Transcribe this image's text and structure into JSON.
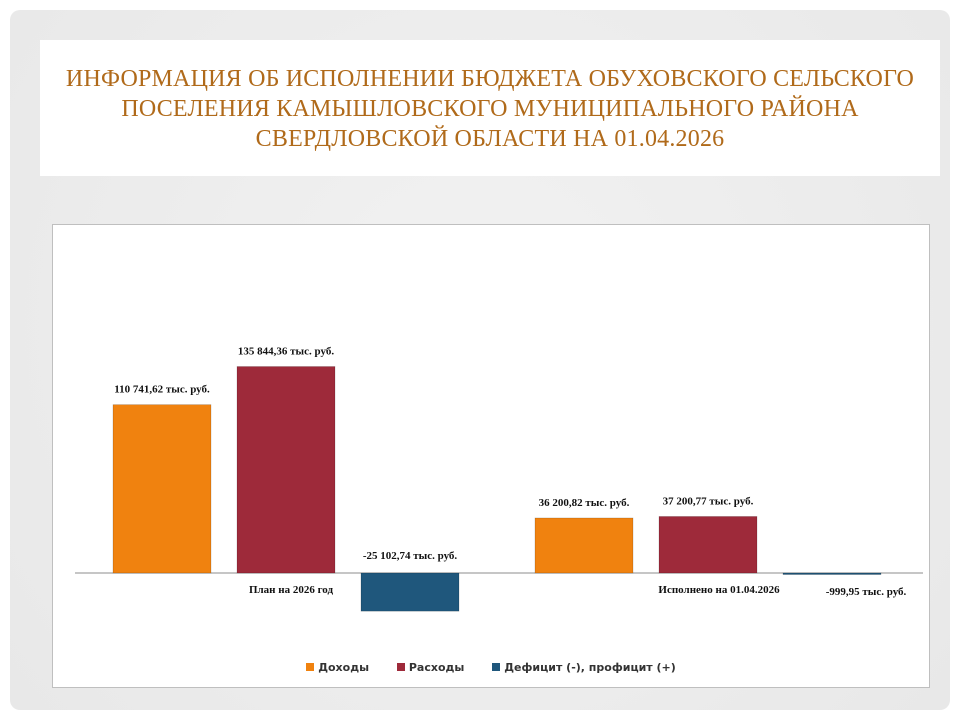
{
  "title": "ИНФОРМАЦИЯ ОБ ИСПОЛНЕНИИ БЮДЖЕТА ОБУХОВСКОГО СЕЛЬСКОГО ПОСЕЛЕНИЯ КАМЫШЛОВСКОГО МУНИЦИПАЛЬНОГО РАЙОНА СВЕРДЛОВСКОЙ ОБЛАСТИ НА 01.04.2026",
  "colors": {
    "title": "#b06a1a",
    "income": "#f0820f",
    "expense": "#9e2a3a",
    "deficit": "#1f577c"
  },
  "chart_data": {
    "type": "bar",
    "categories": [
      "План  на 2026 год",
      "Исполнено  на  01.04.2026"
    ],
    "series": [
      {
        "name": "Доходы",
        "values": [
          110741.62,
          36200.82
        ],
        "labels": [
          "110 741,62 тыс.  руб.",
          "36 200,82 тыс. руб."
        ]
      },
      {
        "name": "Расходы",
        "values": [
          135844.36,
          37200.77
        ],
        "labels": [
          "135 844,36 тыс.  руб.",
          "37 200,77 тыс. руб."
        ]
      },
      {
        "name": "Дефицит  (-), профицит  (+)",
        "values": [
          -25102.74,
          -999.95
        ],
        "labels": [
          "-25 102,74 тыс.  руб.",
          "-999,95 тыс.  руб."
        ]
      }
    ],
    "ylim": [
      -50000,
      350000
    ],
    "grid": false,
    "legend": "bottom"
  }
}
